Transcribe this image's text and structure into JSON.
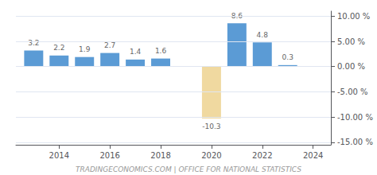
{
  "chart_data": {
    "type": "bar",
    "x": [
      2013,
      2014,
      2015,
      2016,
      2017,
      2018,
      2020,
      2021,
      2022,
      2023
    ],
    "values": [
      3.2,
      2.2,
      1.9,
      2.7,
      1.4,
      1.6,
      -10.3,
      8.6,
      4.8,
      0.3
    ],
    "colors": [
      "#5b9bd5",
      "#5b9bd5",
      "#5b9bd5",
      "#5b9bd5",
      "#5b9bd5",
      "#5b9bd5",
      "#f0d9a0",
      "#5b9bd5",
      "#5b9bd5",
      "#5b9bd5"
    ],
    "xlim": [
      2012.3,
      2024.7
    ],
    "xticks": [
      2014,
      2016,
      2018,
      2020,
      2022,
      2024
    ],
    "ylim": [
      -15.5,
      11.0
    ],
    "yticks": [
      {
        "value": -15,
        "label": "-15.00 %"
      },
      {
        "value": -10,
        "label": "-10.00 %"
      },
      {
        "value": -5,
        "label": "-5.00 %"
      },
      {
        "value": 0,
        "label": "0.00 %"
      },
      {
        "value": 5,
        "label": "5.00 %"
      },
      {
        "value": 10,
        "label": "10.00 %"
      }
    ],
    "grid": true,
    "data_labels": true,
    "annotations": [
      "TRADINGECONOMICS.COM | OFFICE FOR NATIONAL STATISTICS"
    ]
  }
}
